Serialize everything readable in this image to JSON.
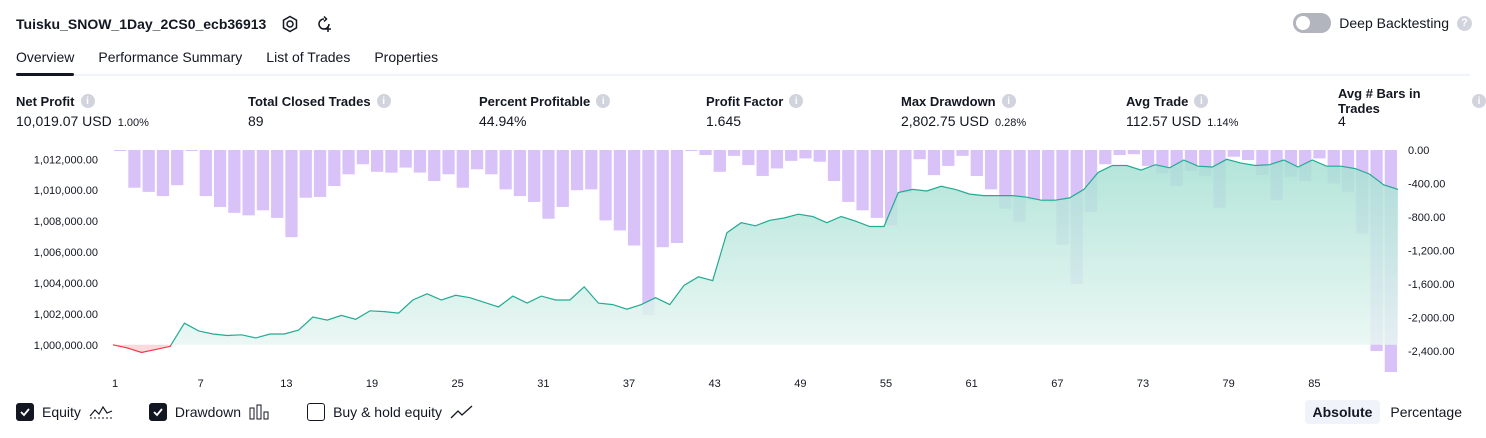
{
  "header": {
    "title": "Tuisku_SNOW_1Day_2CS0_ecb36913",
    "deep_backtesting_label": "Deep Backtesting",
    "help_glyph": "?"
  },
  "tabs": [
    {
      "label": "Overview",
      "active": true
    },
    {
      "label": "Performance Summary"
    },
    {
      "label": "List of Trades"
    },
    {
      "label": "Properties"
    }
  ],
  "metrics": [
    {
      "label": "Net Profit",
      "value": "10,019.07 USD",
      "sub": "1.00%",
      "color": "green"
    },
    {
      "label": "Total Closed Trades",
      "value": "89",
      "sub": "",
      "color": "plain"
    },
    {
      "label": "Percent Profitable",
      "value": "44.94%",
      "sub": "",
      "color": "green"
    },
    {
      "label": "Profit Factor",
      "value": "1.645",
      "sub": "",
      "color": "green"
    },
    {
      "label": "Max Drawdown",
      "value": "2,802.75 USD",
      "sub": "0.28%",
      "color": "red"
    },
    {
      "label": "Avg Trade",
      "value": "112.57 USD",
      "sub": "1.14%",
      "color": "green"
    },
    {
      "label": "Avg # Bars in Trades",
      "value": "4",
      "sub": "",
      "color": "plain"
    }
  ],
  "bottom": {
    "equity_label": "Equity",
    "drawdown_label": "Drawdown",
    "buyhold_label": "Buy & hold equity",
    "equity_checked": true,
    "drawdown_checked": true,
    "buyhold_checked": false,
    "absolute_label": "Absolute",
    "percentage_label": "Percentage"
  },
  "chart_data": {
    "type": "area",
    "x_ticks": [
      "1",
      "7",
      "13",
      "19",
      "25",
      "31",
      "37",
      "43",
      "49",
      "55",
      "61",
      "67",
      "73",
      "79",
      "85"
    ],
    "y_left_ticks": [
      "1,012,000.00",
      "1,010,000.00",
      "1,008,000.00",
      "1,006,000.00",
      "1,004,000.00",
      "1,002,000.00",
      "1,000,000.00"
    ],
    "y_left_values": [
      1012000,
      1010000,
      1008000,
      1006000,
      1004000,
      1002000,
      1000000
    ],
    "y_right_ticks": [
      "0.00",
      "-400.00",
      "-800.00",
      "-1,200.00",
      "-1,600.00",
      "-2,000.00",
      "-2,400.00"
    ],
    "y_right_values": [
      0,
      -400,
      -800,
      -1200,
      -1600,
      -2000,
      -2400
    ],
    "equity_ylim": [
      998500,
      1012600
    ],
    "drawdown_ylim": [
      -2650,
      0
    ],
    "trade_count": 90,
    "colors": {
      "equity_line": "#22ab94",
      "equity_fill": "#c7ebe3",
      "loss_line": "#f23645",
      "loss_fill": "#fbd9dc",
      "drawdown_bar": "#d9c2f8",
      "text": "#131722"
    },
    "equity": [
      1000000,
      999800,
      999500,
      999700,
      999900,
      1001400,
      1000900,
      1000700,
      1000600,
      1000650,
      1000450,
      1000700,
      1000700,
      1000950,
      1001800,
      1001600,
      1001900,
      1001650,
      1002200,
      1002150,
      1002050,
      1002900,
      1003300,
      1002900,
      1003200,
      1003050,
      1002750,
      1002450,
      1003150,
      1002700,
      1003150,
      1002900,
      1002900,
      1003750,
      1002700,
      1002600,
      1002300,
      1002600,
      1003050,
      1002600,
      1003850,
      1004400,
      1004150,
      1007250,
      1007900,
      1007700,
      1008050,
      1008200,
      1008450,
      1008300,
      1007900,
      1008300,
      1008000,
      1007650,
      1007650,
      1009850,
      1010050,
      1009950,
      1010250,
      1010050,
      1009750,
      1009650,
      1009650,
      1009650,
      1009550,
      1009350,
      1009350,
      1009500,
      1010050,
      1011150,
      1011600,
      1011600,
      1011300,
      1011650,
      1011450,
      1011950,
      1011550,
      1011500,
      1012000,
      1011750,
      1011600,
      1011650,
      1011950,
      1011500,
      1011950,
      1011550,
      1011550,
      1011400,
      1011050,
      1010350,
      1010050
    ],
    "drawdown": [
      -10,
      -450,
      -500,
      -550,
      -420,
      -2,
      -550,
      -680,
      -750,
      -780,
      -720,
      -810,
      -1040,
      -570,
      -560,
      -430,
      -290,
      -170,
      -260,
      -270,
      -210,
      -270,
      -370,
      -290,
      -450,
      -230,
      -290,
      -470,
      -550,
      -620,
      -820,
      -680,
      -480,
      -470,
      -840,
      -960,
      -1140,
      -1970,
      -1160,
      -1110,
      -10,
      -60,
      -260,
      -70,
      -180,
      -310,
      -220,
      -130,
      -100,
      -140,
      -370,
      -620,
      -720,
      -810,
      -900,
      -510,
      -110,
      -300,
      -190,
      -70,
      -310,
      -470,
      -700,
      -860,
      -600,
      -620,
      -1130,
      -1600,
      -740,
      -170,
      -60,
      -50,
      -190,
      -280,
      -430,
      -250,
      -310,
      -690,
      -80,
      -120,
      -300,
      -600,
      -320,
      -370,
      -100,
      -400,
      -500,
      -1000,
      -2400,
      -2650
    ]
  }
}
